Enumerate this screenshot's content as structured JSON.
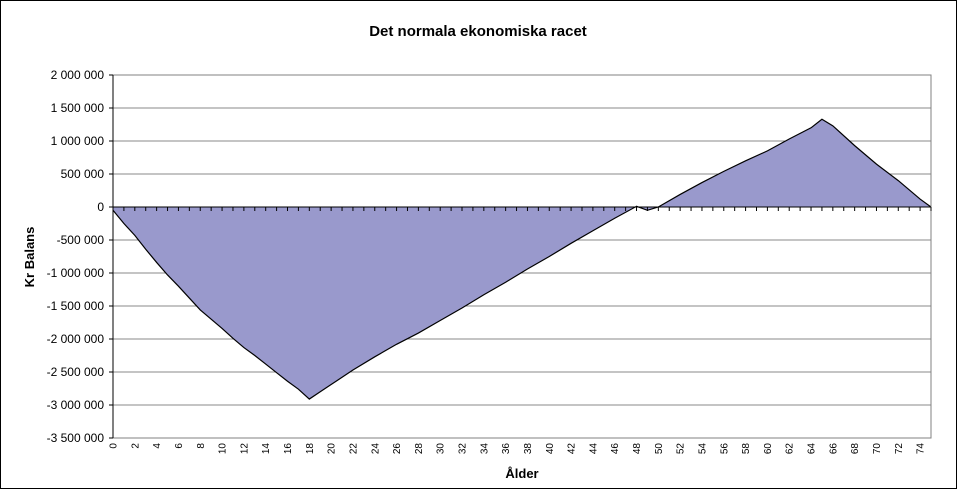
{
  "chart_data": {
    "type": "area",
    "title": "Det normala ekonomiska racet",
    "xlabel": "Ålder",
    "ylabel": "Kr Balans",
    "xlim": [
      0,
      75
    ],
    "ylim": [
      -3500000,
      2000000
    ],
    "y_ticks": [
      2000000,
      1500000,
      1000000,
      500000,
      0,
      -500000,
      -1000000,
      -1500000,
      -2000000,
      -2500000,
      -3000000,
      -3500000
    ],
    "y_tick_labels": [
      "2 000 000",
      "1 500 000",
      "1 000 000",
      "500 000",
      "0",
      "-500 000",
      "-1 000 000",
      "-1 500 000",
      "-2 000 000",
      "-2 500 000",
      "-3 000 000",
      "-3 500 000"
    ],
    "x_tick_labels": [
      "0",
      "2",
      "4",
      "6",
      "8",
      "10",
      "12",
      "14",
      "16",
      "18",
      "20",
      "22",
      "24",
      "26",
      "28",
      "30",
      "32",
      "34",
      "36",
      "38",
      "40",
      "42",
      "44",
      "46",
      "48",
      "50",
      "52",
      "54",
      "56",
      "58",
      "60",
      "62",
      "64",
      "66",
      "68",
      "70",
      "72",
      "74"
    ],
    "grid": true,
    "fill_color": "#9999cc",
    "series": [
      {
        "x": [
          0,
          1,
          2,
          3,
          4,
          5,
          6,
          7,
          8,
          9,
          10,
          11,
          12,
          13,
          14,
          15,
          16,
          17,
          18,
          19,
          20,
          22,
          24,
          26,
          28,
          30,
          32,
          34,
          36,
          38,
          40,
          42,
          44,
          46,
          48,
          49,
          50,
          52,
          54,
          56,
          58,
          60,
          62,
          64,
          65,
          66,
          68,
          70,
          72,
          74,
          75
        ],
        "values": [
          -50000,
          -250000,
          -430000,
          -640000,
          -840000,
          -1030000,
          -1200000,
          -1380000,
          -1560000,
          -1700000,
          -1840000,
          -1990000,
          -2130000,
          -2250000,
          -2380000,
          -2510000,
          -2640000,
          -2760000,
          -2910000,
          -2800000,
          -2690000,
          -2470000,
          -2270000,
          -2080000,
          -1910000,
          -1720000,
          -1530000,
          -1330000,
          -1140000,
          -940000,
          -750000,
          -550000,
          -360000,
          -170000,
          10000,
          -50000,
          0,
          190000,
          370000,
          540000,
          700000,
          850000,
          1030000,
          1200000,
          1330000,
          1230000,
          930000,
          650000,
          400000,
          120000,
          0
        ]
      }
    ]
  }
}
